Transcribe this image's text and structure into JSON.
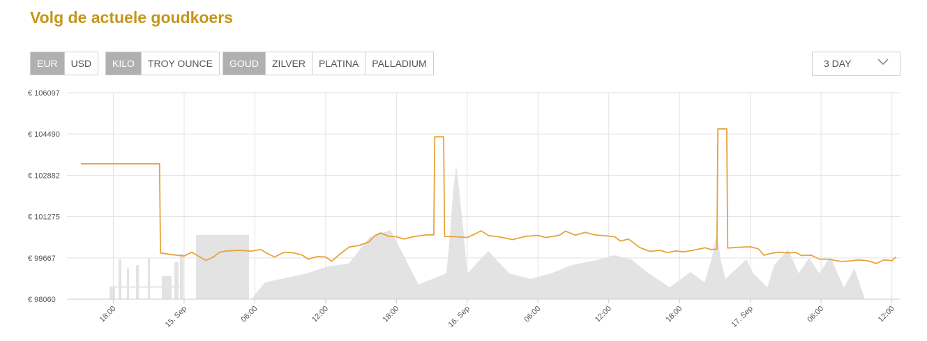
{
  "header": {
    "title": "Volg de actuele goudkoers"
  },
  "currency": {
    "options": [
      "EUR",
      "USD"
    ],
    "selected": "EUR"
  },
  "unit": {
    "options": [
      "KILO",
      "TROY OUNCE"
    ],
    "selected": "KILO"
  },
  "metal": {
    "options": [
      "GOUD",
      "ZILVER",
      "PLATINA",
      "PALLADIUM"
    ],
    "selected": "GOUD"
  },
  "range_select": {
    "value": "3 DAY",
    "icon": "chevron-down-icon"
  },
  "colors": {
    "accent": "#c4961a",
    "line": "#e8a33a",
    "grid": "#e2e2e2",
    "skyline": "#e3e3e3",
    "active_button": "#b0b0b0"
  },
  "chart_data": {
    "type": "line",
    "title": "",
    "xlabel": "",
    "ylabel": "",
    "ylim": [
      98060,
      106097
    ],
    "y_ticks": [
      98060,
      99667,
      101275,
      102882,
      104490,
      106097
    ],
    "y_tick_labels": [
      "€ 98060",
      "€ 99667",
      "€ 101275",
      "€ 102882",
      "€ 104490",
      "€ 106097"
    ],
    "x_ticks": [
      {
        "time": "2024-09-14 18:00",
        "label": "18:00"
      },
      {
        "time": "2024-09-15 00:00",
        "label": "15. Sep"
      },
      {
        "time": "2024-09-15 06:00",
        "label": "06:00"
      },
      {
        "time": "2024-09-15 12:00",
        "label": "12:00"
      },
      {
        "time": "2024-09-15 18:00",
        "label": "18:00"
      },
      {
        "time": "2024-09-16 00:00",
        "label": "16. Sep"
      },
      {
        "time": "2024-09-16 06:00",
        "label": "06:00"
      },
      {
        "time": "2024-09-16 12:00",
        "label": "12:00"
      },
      {
        "time": "2024-09-16 18:00",
        "label": "18:00"
      },
      {
        "time": "2024-09-17 00:00",
        "label": "17. Sep"
      },
      {
        "time": "2024-09-17 06:00",
        "label": "06:00"
      },
      {
        "time": "2024-09-17 12:00",
        "label": "12:00"
      }
    ],
    "grid": true,
    "legend": "none",
    "series": [
      {
        "points": [
          [
            "2024-09-14 15:15",
            103330
          ],
          [
            "2024-09-14 21:55",
            103330
          ],
          [
            "2024-09-14 22:00",
            99860
          ],
          [
            "2024-09-14 23:00",
            99790
          ],
          [
            "2024-09-15 00:00",
            99740
          ],
          [
            "2024-09-15 00:40",
            99890
          ],
          [
            "2024-09-15 01:20",
            99700
          ],
          [
            "2024-09-15 01:50",
            99570
          ],
          [
            "2024-09-15 02:30",
            99700
          ],
          [
            "2024-09-15 03:00",
            99890
          ],
          [
            "2024-09-15 03:40",
            99940
          ],
          [
            "2024-09-15 04:40",
            99960
          ],
          [
            "2024-09-15 05:40",
            99930
          ],
          [
            "2024-09-15 06:30",
            99990
          ],
          [
            "2024-09-15 07:10",
            99810
          ],
          [
            "2024-09-15 07:40",
            99700
          ],
          [
            "2024-09-15 08:30",
            99890
          ],
          [
            "2024-09-15 09:20",
            99860
          ],
          [
            "2024-09-15 10:00",
            99780
          ],
          [
            "2024-09-15 10:30",
            99620
          ],
          [
            "2024-09-15 11:20",
            99720
          ],
          [
            "2024-09-15 12:00",
            99700
          ],
          [
            "2024-09-15 12:30",
            99540
          ],
          [
            "2024-09-15 13:10",
            99800
          ],
          [
            "2024-09-15 14:00",
            100090
          ],
          [
            "2024-09-15 14:50",
            100150
          ],
          [
            "2024-09-15 15:40",
            100290
          ],
          [
            "2024-09-15 16:10",
            100530
          ],
          [
            "2024-09-15 16:40",
            100640
          ],
          [
            "2024-09-15 17:20",
            100510
          ],
          [
            "2024-09-15 18:00",
            100490
          ],
          [
            "2024-09-15 18:40",
            100400
          ],
          [
            "2024-09-15 19:30",
            100500
          ],
          [
            "2024-09-15 20:30",
            100560
          ],
          [
            "2024-09-15 21:10",
            100560
          ],
          [
            "2024-09-15 21:15",
            104380
          ],
          [
            "2024-09-15 22:00",
            104380
          ],
          [
            "2024-09-15 22:05",
            100510
          ],
          [
            "2024-09-15 23:00",
            100490
          ],
          [
            "2024-09-16 00:00",
            100460
          ],
          [
            "2024-09-16 00:40",
            100600
          ],
          [
            "2024-09-16 01:10",
            100720
          ],
          [
            "2024-09-16 01:50",
            100530
          ],
          [
            "2024-09-16 02:40",
            100490
          ],
          [
            "2024-09-16 03:50",
            100380
          ],
          [
            "2024-09-16 05:00",
            100510
          ],
          [
            "2024-09-16 06:00",
            100540
          ],
          [
            "2024-09-16 06:40",
            100460
          ],
          [
            "2024-09-16 07:50",
            100550
          ],
          [
            "2024-09-16 08:20",
            100710
          ],
          [
            "2024-09-16 09:10",
            100550
          ],
          [
            "2024-09-16 10:00",
            100660
          ],
          [
            "2024-09-16 10:50",
            100560
          ],
          [
            "2024-09-16 11:40",
            100530
          ],
          [
            "2024-09-16 12:30",
            100490
          ],
          [
            "2024-09-16 13:00",
            100320
          ],
          [
            "2024-09-16 13:40",
            100400
          ],
          [
            "2024-09-16 14:40",
            100060
          ],
          [
            "2024-09-16 15:30",
            99920
          ],
          [
            "2024-09-16 16:20",
            99960
          ],
          [
            "2024-09-16 17:00",
            99870
          ],
          [
            "2024-09-16 17:40",
            99940
          ],
          [
            "2024-09-16 18:20",
            99900
          ],
          [
            "2024-09-16 19:20",
            99980
          ],
          [
            "2024-09-16 20:10",
            100060
          ],
          [
            "2024-09-16 20:40",
            99990
          ],
          [
            "2024-09-16 21:10",
            100010
          ],
          [
            "2024-09-16 21:15",
            104690
          ],
          [
            "2024-09-16 22:00",
            104690
          ],
          [
            "2024-09-16 22:05",
            100050
          ],
          [
            "2024-09-16 23:00",
            100080
          ],
          [
            "2024-09-17 00:00",
            100100
          ],
          [
            "2024-09-17 00:40",
            100020
          ],
          [
            "2024-09-17 01:10",
            99770
          ],
          [
            "2024-09-17 01:40",
            99830
          ],
          [
            "2024-09-17 02:20",
            99890
          ],
          [
            "2024-09-17 03:10",
            99860
          ],
          [
            "2024-09-17 03:50",
            99880
          ],
          [
            "2024-09-17 04:20",
            99760
          ],
          [
            "2024-09-17 05:10",
            99770
          ],
          [
            "2024-09-17 05:50",
            99620
          ],
          [
            "2024-09-17 06:40",
            99610
          ],
          [
            "2024-09-17 07:40",
            99530
          ],
          [
            "2024-09-17 08:30",
            99550
          ],
          [
            "2024-09-17 09:10",
            99590
          ],
          [
            "2024-09-17 10:00",
            99550
          ],
          [
            "2024-09-17 10:40",
            99450
          ],
          [
            "2024-09-17 11:20",
            99590
          ],
          [
            "2024-09-17 12:00",
            99560
          ],
          [
            "2024-09-17 12:20",
            99700
          ]
        ]
      }
    ]
  }
}
